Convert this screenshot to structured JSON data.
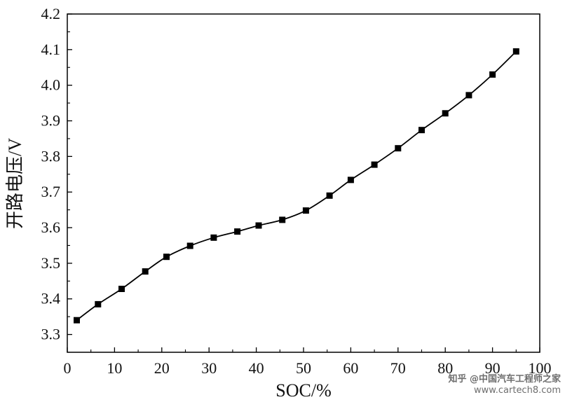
{
  "chart_data": {
    "type": "line",
    "title": "",
    "xlabel": "SOC/%",
    "ylabel": "开路电压/V",
    "xlim": [
      0,
      100
    ],
    "ylim": [
      3.25,
      4.2
    ],
    "x_ticks": [
      0,
      10,
      20,
      30,
      40,
      50,
      60,
      70,
      80,
      90,
      100
    ],
    "y_ticks": [
      3.3,
      3.4,
      3.5,
      3.6,
      3.7,
      3.8,
      3.9,
      4.0,
      4.1,
      4.2
    ],
    "x_tick_labels": [
      "0",
      "10",
      "20",
      "30",
      "40",
      "50",
      "60",
      "70",
      "80",
      "90",
      "100"
    ],
    "y_tick_labels": [
      "3.3",
      "3.4",
      "3.5",
      "3.6",
      "3.7",
      "3.8",
      "3.9",
      "4.0",
      "4.1",
      "4.2"
    ],
    "grid": false,
    "marker": "square",
    "line_color": "#000000",
    "series": [
      {
        "x": [
          2,
          6.5,
          11.5,
          16.5,
          21,
          26,
          31,
          36,
          40.5,
          45.5,
          50.5,
          55.5,
          60,
          65,
          70,
          75,
          80,
          85,
          90,
          95
        ],
        "y": [
          3.34,
          3.385,
          3.428,
          3.477,
          3.518,
          3.549,
          3.572,
          3.589,
          3.606,
          3.622,
          3.648,
          3.69,
          3.734,
          3.777,
          3.823,
          3.874,
          3.921,
          3.972,
          4.03,
          4.095
        ]
      }
    ]
  },
  "watermark": {
    "brand": "知乎 @中国汽车工程师之家",
    "site": "www.cartech8.com"
  }
}
